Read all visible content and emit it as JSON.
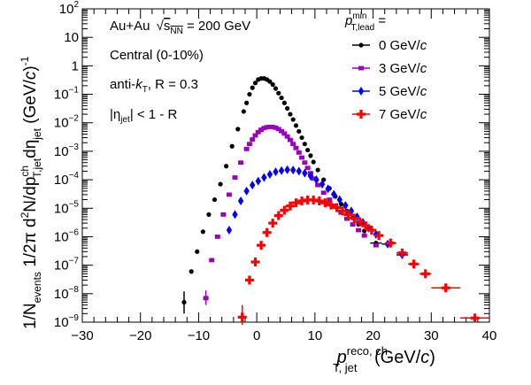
{
  "chart_data": {
    "type": "scatter",
    "title": "",
    "xlabel": {
      "main": "p",
      "sup": "reco, ch",
      "sub": "T, jet",
      "unit_prefix": " (GeV/",
      "unit_var": "c",
      "unit_suffix": ")"
    },
    "ylabel": {
      "part1": "1/N",
      "part1_sub": "events",
      "part2": " 1/2π d",
      "part2_sup": "2",
      "part3": "N/dp",
      "part3_sup": "ch",
      "part3_sub": "T,jet",
      "part4": "dη",
      "part4_sub": "jet",
      "part5": " (GeV/",
      "part5_var": "c",
      "part6": ")",
      "part6_sup": "-1"
    },
    "xlim": [
      -30,
      40
    ],
    "ylim": [
      1e-09,
      100
    ],
    "yscale": "log",
    "x_ticks": [
      "−30",
      "−20",
      "−10",
      "0",
      "10",
      "20",
      "30",
      "40"
    ],
    "x_tick_values": [
      -30,
      -20,
      -10,
      0,
      10,
      20,
      30,
      40
    ],
    "y_ticks": [
      {
        "base": "10",
        "exp": "2",
        "value": 100
      },
      {
        "base": "10",
        "exp": "",
        "value": 10
      },
      {
        "base": "1",
        "exp": "",
        "value": 1
      },
      {
        "base": "10",
        "exp": "−1",
        "value": 0.1
      },
      {
        "base": "10",
        "exp": "−2",
        "value": 0.01
      },
      {
        "base": "10",
        "exp": "−3",
        "value": 0.001
      },
      {
        "base": "10",
        "exp": "−4",
        "value": 0.0001
      },
      {
        "base": "10",
        "exp": "−5",
        "value": 1e-05
      },
      {
        "base": "10",
        "exp": "−6",
        "value": 1e-06
      },
      {
        "base": "10",
        "exp": "−7",
        "value": 1e-07
      },
      {
        "base": "10",
        "exp": "−8",
        "value": 1e-08
      },
      {
        "base": "10",
        "exp": "−9",
        "value": 1e-09
      }
    ],
    "annotations": {
      "system_a": "Au+Au ",
      "system_sqrt": "s",
      "system_sub": "NN",
      "system_b": " = 200 GeV",
      "centrality": "Central (0-10%)",
      "algo_a": "anti-",
      "algo_k": "k",
      "algo_sub": "T",
      "algo_b": ", R = 0.3",
      "eta_a": "|η",
      "eta_sub": "jet",
      "eta_b": "| < 1 - R"
    },
    "legend": {
      "header_p": "p",
      "header_sup": "min",
      "header_sub": "T,lead",
      "header_eq": " =",
      "placement": "top-right"
    },
    "series": [
      {
        "name": "0 GeV/c",
        "name_num": "0 GeV/",
        "name_var": "c",
        "color": "#000000",
        "marker": "circle",
        "points": [
          {
            "x": -12.5,
            "y": 5e-09,
            "ylo": 2e-09,
            "yhi": 1.2e-08
          },
          {
            "x": -11.25,
            "y": 6e-08
          },
          {
            "x": -10.25,
            "y": 3e-07
          },
          {
            "x": -9.25,
            "y": 1.5e-06
          },
          {
            "x": -8.25,
            "y": 6e-06
          },
          {
            "x": -7.25,
            "y": 2e-05
          },
          {
            "x": -6.25,
            "y": 7e-05
          },
          {
            "x": -5.25,
            "y": 0.0003
          },
          {
            "x": -4.25,
            "y": 0.0015
          },
          {
            "x": -3.25,
            "y": 0.006
          },
          {
            "x": -2.25,
            "y": 0.025
          },
          {
            "x": -1.75,
            "y": 0.05
          },
          {
            "x": -1.25,
            "y": 0.1
          },
          {
            "x": -0.75,
            "y": 0.17
          },
          {
            "x": -0.25,
            "y": 0.25
          },
          {
            "x": 0.25,
            "y": 0.33
          },
          {
            "x": 0.75,
            "y": 0.36
          },
          {
            "x": 1.25,
            "y": 0.36
          },
          {
            "x": 1.75,
            "y": 0.33
          },
          {
            "x": 2.25,
            "y": 0.28
          },
          {
            "x": 2.75,
            "y": 0.22
          },
          {
            "x": 3.25,
            "y": 0.16
          },
          {
            "x": 3.75,
            "y": 0.11
          },
          {
            "x": 4.25,
            "y": 0.075
          },
          {
            "x": 4.75,
            "y": 0.05
          },
          {
            "x": 5.25,
            "y": 0.032
          },
          {
            "x": 5.75,
            "y": 0.02
          },
          {
            "x": 6.25,
            "y": 0.013
          },
          {
            "x": 6.75,
            "y": 0.008
          },
          {
            "x": 7.25,
            "y": 0.005
          },
          {
            "x": 7.75,
            "y": 0.003
          },
          {
            "x": 8.25,
            "y": 0.0018
          },
          {
            "x": 8.75,
            "y": 0.0011
          },
          {
            "x": 9.25,
            "y": 0.0007
          },
          {
            "x": 9.75,
            "y": 0.00042
          },
          {
            "x": 10.5,
            "y": 0.00022
          },
          {
            "x": 11.5,
            "y": 0.0001
          },
          {
            "x": 12.5,
            "y": 5e-05
          },
          {
            "x": 13.5,
            "y": 2.6e-05
          },
          {
            "x": 14.5,
            "y": 1.4e-05
          },
          {
            "x": 15.5,
            "y": 8e-06
          },
          {
            "x": 16.5,
            "y": 4.6e-06
          },
          {
            "x": 17.5,
            "y": 2.7e-06
          },
          {
            "x": 18.5,
            "y": 1.6e-06
          },
          {
            "x": 20.5,
            "y": 6e-07,
            "xerr": 1
          }
        ]
      },
      {
        "name": "3 GeV/c",
        "name_num": "3 GeV/",
        "name_var": "c",
        "color": "#9900bb",
        "marker": "square",
        "points": [
          {
            "x": -8.75,
            "y": 7e-09,
            "ylo": 4e-09,
            "yhi": 1.3e-08
          },
          {
            "x": -7.75,
            "y": 1.5e-07
          },
          {
            "x": -6.75,
            "y": 1e-06
          },
          {
            "x": -5.75,
            "y": 6e-06
          },
          {
            "x": -4.75,
            "y": 3e-05
          },
          {
            "x": -3.75,
            "y": 0.00012
          },
          {
            "x": -2.75,
            "y": 0.0004
          },
          {
            "x": -1.75,
            "y": 0.0012
          },
          {
            "x": -1.25,
            "y": 0.0018
          },
          {
            "x": -0.75,
            "y": 0.0026
          },
          {
            "x": -0.25,
            "y": 0.0036
          },
          {
            "x": 0.25,
            "y": 0.0047
          },
          {
            "x": 0.75,
            "y": 0.0057
          },
          {
            "x": 1.25,
            "y": 0.0065
          },
          {
            "x": 1.75,
            "y": 0.007
          },
          {
            "x": 2.25,
            "y": 0.0072
          },
          {
            "x": 2.75,
            "y": 0.0071
          },
          {
            "x": 3.25,
            "y": 0.0067
          },
          {
            "x": 3.75,
            "y": 0.006
          },
          {
            "x": 4.25,
            "y": 0.0051
          },
          {
            "x": 4.75,
            "y": 0.0042
          },
          {
            "x": 5.25,
            "y": 0.0033
          },
          {
            "x": 5.75,
            "y": 0.0025
          },
          {
            "x": 6.25,
            "y": 0.0018
          },
          {
            "x": 6.75,
            "y": 0.0013
          },
          {
            "x": 7.25,
            "y": 0.0009
          },
          {
            "x": 7.75,
            "y": 0.0006
          },
          {
            "x": 8.25,
            "y": 0.0004
          },
          {
            "x": 8.75,
            "y": 0.00026
          },
          {
            "x": 9.25,
            "y": 0.00017
          },
          {
            "x": 9.75,
            "y": 0.00011
          },
          {
            "x": 10.5,
            "y": 6.5e-05
          },
          {
            "x": 11.5,
            "y": 3.5e-05
          },
          {
            "x": 12.5,
            "y": 2e-05
          },
          {
            "x": 13.5,
            "y": 1.15e-05
          },
          {
            "x": 14.5,
            "y": 7e-06
          },
          {
            "x": 15.5,
            "y": 4.3e-06
          },
          {
            "x": 16.5,
            "y": 2.7e-06
          },
          {
            "x": 17.5,
            "y": 1.7e-06
          },
          {
            "x": 18.5,
            "y": 1.1e-06
          },
          {
            "x": 20.5,
            "y": 5e-07
          }
        ]
      },
      {
        "name": "5 GeV/c",
        "name_num": "5 GeV/",
        "name_var": "c",
        "color": "#0000ff",
        "marker": "diamond",
        "points": [
          {
            "x": -4.75,
            "y": 1.7e-06
          },
          {
            "x": -3.75,
            "y": 6e-06
          },
          {
            "x": -2.75,
            "y": 1.8e-05
          },
          {
            "x": -1.75,
            "y": 4e-05
          },
          {
            "x": -0.75,
            "y": 6.5e-05
          },
          {
            "x": 0.25,
            "y": 9e-05
          },
          {
            "x": 1.25,
            "y": 0.00012
          },
          {
            "x": 2.25,
            "y": 0.000155
          },
          {
            "x": 3.25,
            "y": 0.00019
          },
          {
            "x": 4.25,
            "y": 0.00021
          },
          {
            "x": 5.25,
            "y": 0.000225
          },
          {
            "x": 6.25,
            "y": 0.00022
          },
          {
            "x": 7.25,
            "y": 0.0002
          },
          {
            "x": 8.25,
            "y": 0.00017
          },
          {
            "x": 9.25,
            "y": 0.000135
          },
          {
            "x": 10.25,
            "y": 0.0001
          },
          {
            "x": 11.25,
            "y": 7e-05
          },
          {
            "x": 12.25,
            "y": 4.8e-05
          },
          {
            "x": 13.25,
            "y": 3.1e-05
          },
          {
            "x": 14.25,
            "y": 2e-05
          },
          {
            "x": 15.25,
            "y": 1.25e-05
          },
          {
            "x": 16.25,
            "y": 8e-06
          },
          {
            "x": 17.25,
            "y": 5e-06
          },
          {
            "x": 18.25,
            "y": 3.2e-06
          },
          {
            "x": 19.25,
            "y": 2e-06
          },
          {
            "x": 20.5,
            "y": 1.2e-06
          },
          {
            "x": 22.5,
            "y": 5.5e-07,
            "xerr": 1
          },
          {
            "x": 25,
            "y": 2.3e-07,
            "xerr": 1
          }
        ]
      },
      {
        "name": "7 GeV/c",
        "name_num": "7 GeV/",
        "name_var": "c",
        "color": "#ff0000",
        "marker": "cross",
        "points": [
          {
            "x": -2.5,
            "y": 1.5e-09,
            "ylo": 8e-10,
            "yhi": 4e-09
          },
          {
            "x": -1.25,
            "y": 3e-08
          },
          {
            "x": -0.25,
            "y": 1.3e-07
          },
          {
            "x": 0.75,
            "y": 5e-07
          },
          {
            "x": 1.75,
            "y": 1.4e-06
          },
          {
            "x": 2.75,
            "y": 3e-06
          },
          {
            "x": 3.75,
            "y": 5.5e-06
          },
          {
            "x": 4.75,
            "y": 8.5e-06
          },
          {
            "x": 5.75,
            "y": 1.2e-05
          },
          {
            "x": 6.75,
            "y": 1.55e-05
          },
          {
            "x": 7.75,
            "y": 1.8e-05
          },
          {
            "x": 8.75,
            "y": 1.95e-05
          },
          {
            "x": 9.75,
            "y": 1.95e-05
          },
          {
            "x": 10.75,
            "y": 1.8e-05
          },
          {
            "x": 11.75,
            "y": 1.55e-05
          },
          {
            "x": 12.75,
            "y": 1.3e-05
          },
          {
            "x": 13.75,
            "y": 1.05e-05
          },
          {
            "x": 14.75,
            "y": 8e-06
          },
          {
            "x": 15.75,
            "y": 6e-06
          },
          {
            "x": 16.75,
            "y": 4.5e-06
          },
          {
            "x": 17.75,
            "y": 3.3e-06
          },
          {
            "x": 18.75,
            "y": 2.4e-06
          },
          {
            "x": 19.75,
            "y": 1.7e-06
          },
          {
            "x": 21,
            "y": 1.1e-06,
            "xerr": 0.5
          },
          {
            "x": 23,
            "y": 6e-07,
            "xerr": 1
          },
          {
            "x": 25,
            "y": 2.7e-07,
            "xerr": 1
          },
          {
            "x": 27,
            "y": 1.1e-07,
            "xerr": 1
          },
          {
            "x": 29,
            "y": 5e-08,
            "xerr": 1
          },
          {
            "x": 32.5,
            "y": 1.6e-08,
            "xerr": 2.5,
            "ylo": 1.3e-08,
            "yhi": 1.9e-08
          },
          {
            "x": 37.5,
            "y": 1.4e-09,
            "xerr": 2.5,
            "ylo": 1.1e-09,
            "yhi": 1.8e-09
          }
        ]
      }
    ]
  }
}
